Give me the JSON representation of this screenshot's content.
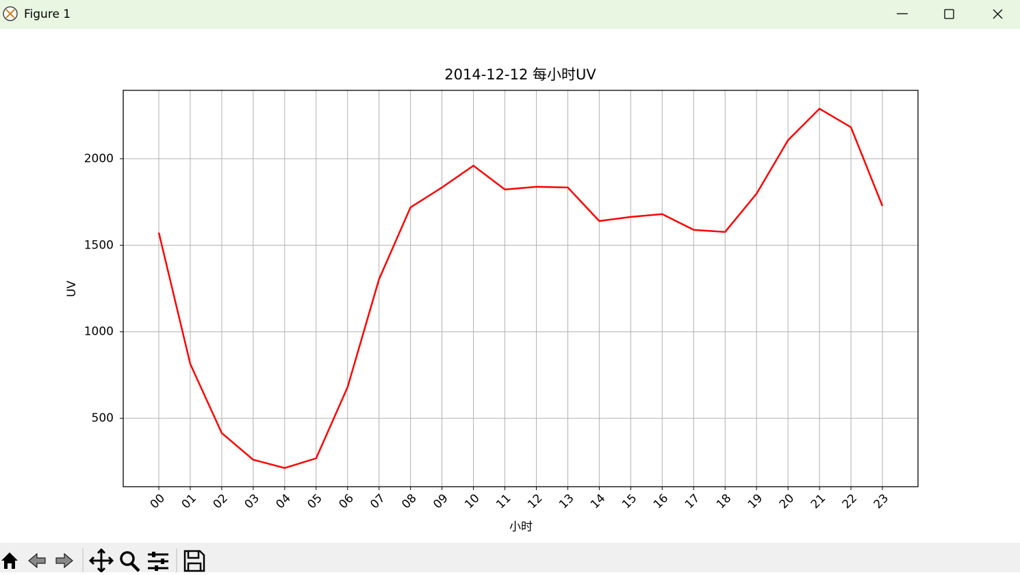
{
  "window": {
    "title": "Figure 1"
  },
  "chart_data": {
    "type": "line",
    "title": "2014-12-12 每小时UV",
    "xlabel": "小时",
    "ylabel": "UV",
    "categories": [
      "00",
      "01",
      "02",
      "03",
      "04",
      "05",
      "06",
      "07",
      "08",
      "09",
      "10",
      "11",
      "12",
      "13",
      "14",
      "15",
      "16",
      "17",
      "18",
      "19",
      "20",
      "21",
      "22",
      "23"
    ],
    "values": [
      1573,
      814,
      415,
      261,
      213,
      269,
      680,
      1304,
      1719,
      1834,
      1960,
      1822,
      1838,
      1834,
      1640,
      1664,
      1680,
      1589,
      1577,
      1798,
      2107,
      2289,
      2182,
      1727
    ],
    "color": "#ff0000",
    "ylim": [
      105,
      2395
    ],
    "yticks": [
      500,
      1000,
      1500,
      2000
    ],
    "grid": true
  }
}
